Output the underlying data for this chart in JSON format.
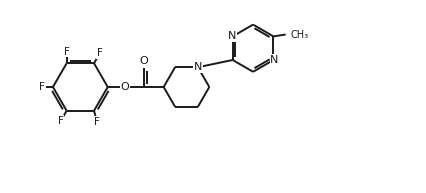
{
  "bg_color": "#ffffff",
  "line_color": "#1a1a1a",
  "line_width": 1.4,
  "font_size": 8.0,
  "fig_width": 4.27,
  "fig_height": 1.93,
  "dpi": 100,
  "xlim": [
    0,
    10.5
  ],
  "ylim": [
    0,
    5.0
  ]
}
